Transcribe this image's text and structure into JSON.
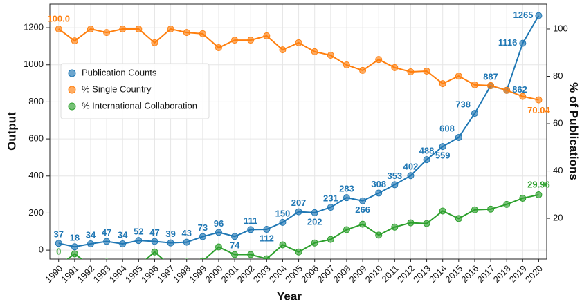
{
  "chart_data": {
    "type": "line",
    "x_label": "Year",
    "y_label": "Output",
    "y2_label": "% of Publications",
    "x": [
      1990,
      1991,
      1992,
      1993,
      1994,
      1995,
      1996,
      1997,
      1998,
      1999,
      2000,
      2001,
      2002,
      2003,
      2004,
      2005,
      2006,
      2007,
      2008,
      2009,
      2010,
      2011,
      2012,
      2013,
      2014,
      2015,
      2016,
      2017,
      2018,
      2019,
      2020
    ],
    "xlim": [
      1989.45,
      2020.5
    ],
    "xticks": [
      1990,
      1991,
      1992,
      1993,
      1994,
      1995,
      1996,
      1997,
      1998,
      1999,
      2000,
      2001,
      2002,
      2003,
      2004,
      2005,
      2006,
      2007,
      2008,
      2009,
      2010,
      2011,
      2012,
      2013,
      2014,
      2015,
      2016,
      2017,
      2018,
      2019,
      2020
    ],
    "ylim": [
      -48,
      1327
    ],
    "yticks": [
      0,
      200,
      400,
      600,
      800,
      1000,
      1200
    ],
    "y2lim": [
      2.8,
      110.5
    ],
    "y2ticks": [
      20,
      40,
      60,
      80,
      100
    ],
    "grid": true,
    "legend": "upper left",
    "series": [
      {
        "name": "Publication Counts",
        "color": "#1f77b4",
        "axis": "y",
        "values": [
          37,
          18,
          34,
          47,
          34,
          52,
          47,
          39,
          43,
          73,
          96,
          74,
          111,
          112,
          150,
          207,
          202,
          231,
          283,
          266,
          308,
          353,
          402,
          488,
          559,
          608,
          738,
          887,
          862,
          1116,
          1265
        ]
      },
      {
        "name": "% Single Country",
        "color": "#ff7f0e",
        "axis": "y2",
        "values": [
          100,
          95.0,
          100,
          98.5,
          100,
          100,
          94.2,
          100,
          98.5,
          98.0,
          92.1,
          95.3,
          95.3,
          97.1,
          91.2,
          94.2,
          90.4,
          88.9,
          84.8,
          82.5,
          87.1,
          83.7,
          81.9,
          82.2,
          76.9,
          80.1,
          76.4,
          76.1,
          74.1,
          71.5,
          70.04
        ],
        "value_labels": [
          "100.0",
          null,
          null,
          null,
          null,
          null,
          null,
          null,
          null,
          null,
          null,
          null,
          null,
          null,
          null,
          null,
          null,
          null,
          null,
          null,
          null,
          null,
          null,
          null,
          null,
          null,
          null,
          null,
          null,
          null,
          "70.04"
        ]
      },
      {
        "name": "% International Collaboration",
        "color": "#2ca02c",
        "axis": "y2",
        "values": [
          0,
          5.0,
          0,
          1.5,
          0,
          0,
          5.8,
          0,
          1.5,
          2.0,
          7.9,
          4.7,
          4.7,
          2.9,
          8.8,
          5.8,
          9.6,
          11.1,
          15.2,
          17.5,
          12.9,
          16.3,
          18.1,
          17.8,
          23.1,
          19.9,
          23.6,
          23.9,
          25.9,
          28.5,
          29.96
        ],
        "value_labels": [
          "0",
          null,
          null,
          null,
          null,
          null,
          null,
          null,
          null,
          null,
          null,
          null,
          null,
          null,
          null,
          null,
          null,
          null,
          null,
          null,
          null,
          null,
          null,
          null,
          null,
          null,
          null,
          null,
          null,
          null,
          "29.96"
        ]
      }
    ]
  }
}
